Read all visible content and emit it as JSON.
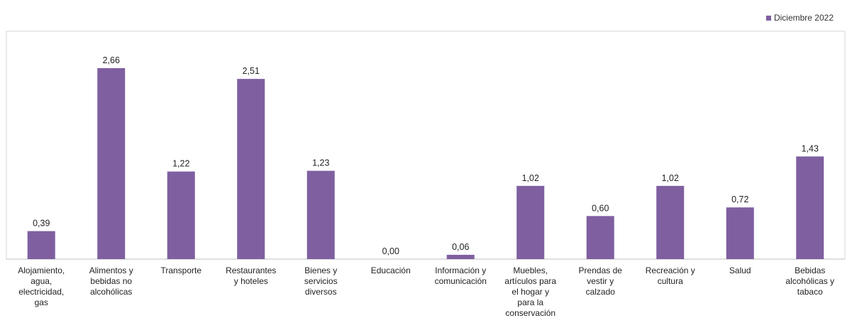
{
  "chart_data": {
    "type": "bar",
    "categories": [
      "Alojamiento,\nagua,\nelectricidad,\ngas",
      "Alimentos y\nbebidas no\nalcohólicas",
      "Transporte",
      "Restaurantes\ny hoteles",
      "Bienes y\nservicios\ndiversos",
      "Educación",
      "Información y\ncomunicación",
      "Muebles,\nartículos para\nel hogar y\npara la\nconservación",
      "Prendas de\nvestir y\ncalzado",
      "Recreación y\ncultura",
      "Salud",
      "Bebidas\nalcohólicas y\ntabaco"
    ],
    "series": [
      {
        "name": "Diciembre 2022",
        "values": [
          0.39,
          2.66,
          1.22,
          2.51,
          1.23,
          0.0,
          0.06,
          1.02,
          0.6,
          1.02,
          0.72,
          1.43
        ],
        "labels": [
          "0,39",
          "2,66",
          "1,22",
          "2,51",
          "1,23",
          "0,00",
          "0,06",
          "1,02",
          "0,60",
          "1,02",
          "0,72",
          "1,43"
        ]
      }
    ],
    "ylim": [
      0,
      3.0
    ],
    "grid": false,
    "legend_position": "top-right",
    "bar_color": "#7f5fa0"
  }
}
